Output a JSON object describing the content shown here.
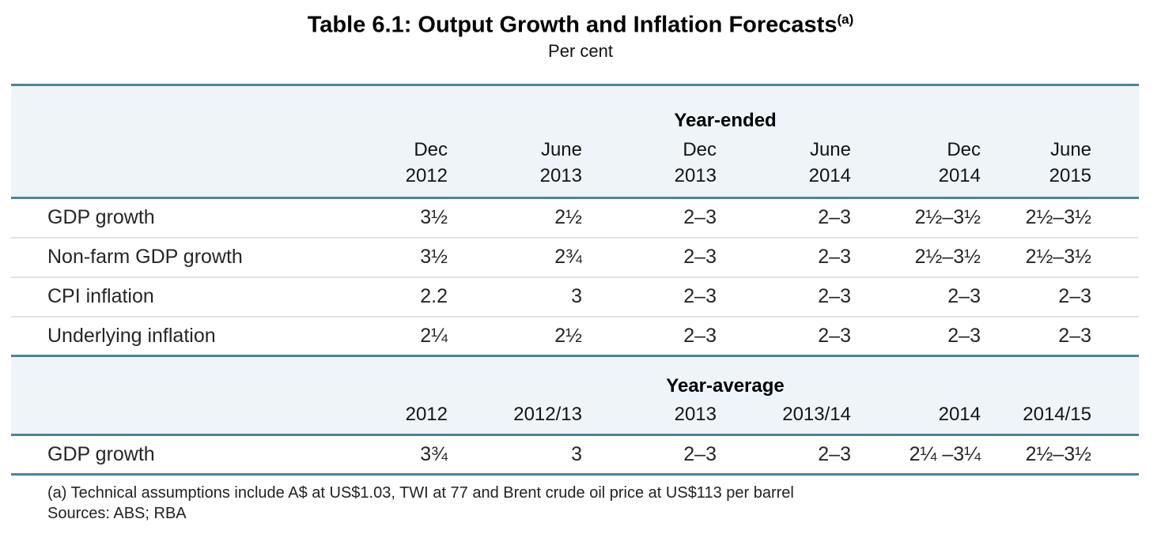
{
  "title": {
    "text": "Table 6.1: Output Growth and Inflation Forecasts",
    "footnote_marker": "(a)",
    "subtitle": "Per cent"
  },
  "colors": {
    "rule_teal": "#4d8399",
    "band_bg": "#eef4f7",
    "divider_gray": "#e2e2e2"
  },
  "table": {
    "sections": [
      {
        "header": "Year-ended",
        "columns": [
          [
            "Dec",
            "2012"
          ],
          [
            "June",
            "2013"
          ],
          [
            "Dec",
            "2013"
          ],
          [
            "June",
            "2014"
          ],
          [
            "Dec",
            "2014"
          ],
          [
            "June",
            "2015"
          ]
        ],
        "rows": [
          {
            "label": "GDP growth",
            "values": [
              "3½",
              "2½",
              "2–3",
              "2–3",
              "2½–3½",
              "2½–3½"
            ]
          },
          {
            "label": "Non-farm GDP growth",
            "values": [
              "3½",
              "2¾",
              "2–3",
              "2–3",
              "2½–3½",
              "2½–3½"
            ]
          },
          {
            "label": "CPI inflation",
            "values": [
              "2.2",
              "3",
              "2–3",
              "2–3",
              "2–3",
              "2–3"
            ]
          },
          {
            "label": "Underlying inflation",
            "values": [
              "2¼",
              "2½",
              "2–3",
              "2–3",
              "2–3",
              "2–3"
            ]
          }
        ]
      },
      {
        "header": "Year-average",
        "columns": [
          "2012",
          "2012/13",
          "2013",
          "2013/14",
          "2014",
          "2014/15"
        ],
        "rows": [
          {
            "label": "GDP growth",
            "values": [
              "3¾",
              "3",
              "2–3",
              "2–3",
              "2¼ –3¼",
              "2½–3½"
            ]
          }
        ]
      }
    ]
  },
  "footnotes": [
    "(a) Technical assumptions include A$ at US$1.03, TWI at 77 and Brent crude oil price at US$113 per barrel",
    "Sources: ABS; RBA"
  ]
}
